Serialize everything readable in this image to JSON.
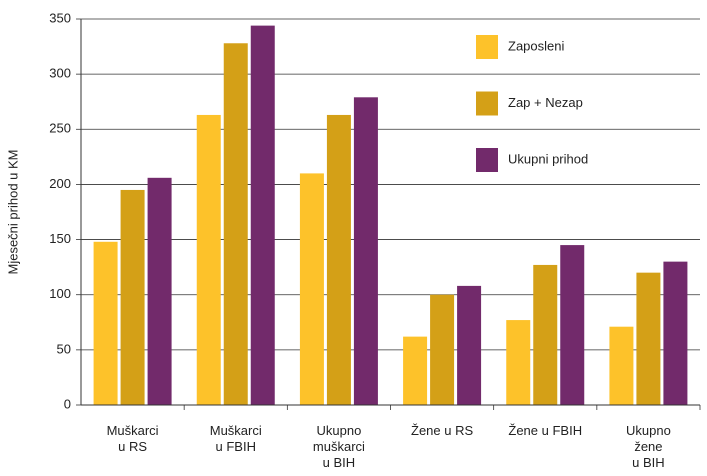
{
  "chart_data": {
    "type": "bar",
    "y_label": "Mjesečni prihod u KM",
    "categories": [
      "Muškarci\nu RS",
      "Muškarci\nu FBIH",
      "Ukupno\nmuškarci\nu BIH",
      "Žene u RS",
      "Žene u FBIH",
      "Ukupno\nžene\nu BIH"
    ],
    "series": [
      {
        "name": "Zaposleni",
        "color": "#fdc22a",
        "values": [
          148,
          263,
          210,
          62,
          77,
          71
        ]
      },
      {
        "name": "Zap + Nezap",
        "color": "#d4a017",
        "values": [
          195,
          328,
          263,
          100,
          127,
          120
        ]
      },
      {
        "name": "Ukupni prihod",
        "color": "#722a6b",
        "values": [
          206,
          344,
          279,
          108,
          145,
          130
        ]
      }
    ],
    "ylim": [
      0,
      350
    ],
    "yticks": [
      0,
      50,
      100,
      150,
      200,
      250,
      300,
      350
    ],
    "grid": true,
    "legend": "upper right"
  }
}
